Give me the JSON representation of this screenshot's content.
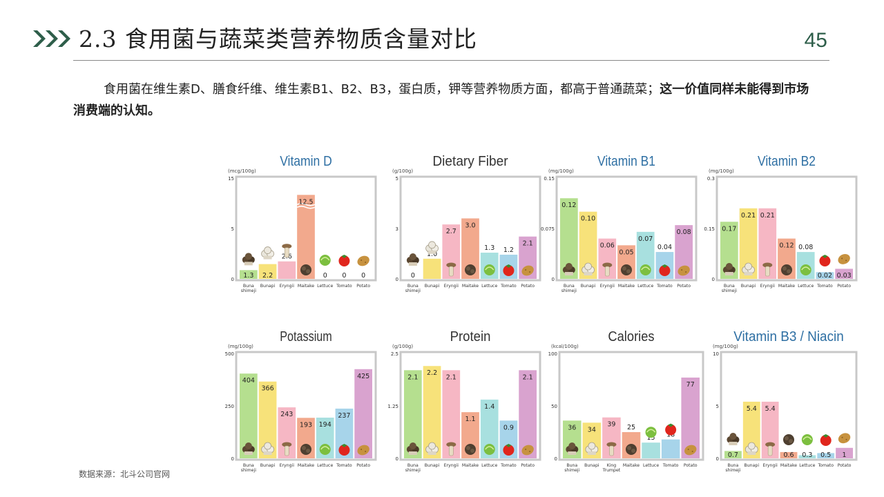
{
  "header": {
    "title": "2.3 食用菌与蔬菜类营养物质含量对比",
    "page_number": "45",
    "accent_color": "#2e5e4a"
  },
  "body": {
    "text_normal": "食用菌在维生素D、膳食纤维、维生素B1、B2、B3，蛋白质，钾等营养物质方面，都高于普通蔬菜；",
    "text_bold": "这一价值同样未能得到市场消费端的认知。"
  },
  "footer": {
    "source": "数据来源：北斗公司官网"
  },
  "colors": {
    "bars": [
      "#b5df8f",
      "#f7e27a",
      "#f6b7c4",
      "#f2a98d",
      "#a8e0df",
      "#a7d4ea",
      "#d9a3cf"
    ],
    "title_blue": "#2e6fa3",
    "title_dark": "#333333",
    "frame": "#c8c8c8"
  },
  "chart_data": [
    {
      "type": "bar",
      "title": "Vitamin D",
      "unit": "(mcg/100g)",
      "title_color": "blue",
      "yticks": [
        "15",
        "5",
        "0"
      ],
      "ylim": [
        0,
        15
      ],
      "categories": [
        "Buna shimeji",
        "Bunapi",
        "Eryngii",
        "Maitake",
        "Lettuce",
        "Tomato",
        "Potato"
      ],
      "values": [
        1.3,
        2.2,
        2.6,
        12.5,
        0,
        0,
        0
      ],
      "labels": [
        "1.3",
        "2.2",
        "2.6",
        "12.5",
        "0",
        "0",
        "0"
      ],
      "broken_bar_index": 3
    },
    {
      "type": "bar",
      "title": "Dietary Fiber",
      "unit": "(g/100g)",
      "title_color": "dark",
      "yticks": [
        "5",
        "3",
        "0"
      ],
      "ylim": [
        0,
        5
      ],
      "categories": [
        "Buna shimeji",
        "Bunapi",
        "Eryngii",
        "Maitake",
        "Lettuce",
        "Tomato",
        "Potato"
      ],
      "values": [
        0,
        1.0,
        2.7,
        3.0,
        1.3,
        1.2,
        2.1
      ],
      "labels": [
        "0",
        "1.0",
        "2.7",
        "3.0",
        "1.3",
        "1.2",
        "2.1"
      ]
    },
    {
      "type": "bar",
      "title": "Vitamin B1",
      "unit": "(mg/100g)",
      "title_color": "blue",
      "yticks": [
        "0.15",
        "0.075",
        "0"
      ],
      "ylim": [
        0,
        0.15
      ],
      "categories": [
        "Buna shimeji",
        "Bunapi",
        "Eryngii",
        "Maitake",
        "Lettuce",
        "Tomato",
        "Potato"
      ],
      "values": [
        0.12,
        0.1,
        0.06,
        0.05,
        0.07,
        0.04,
        0.08
      ],
      "labels": [
        "0.12",
        "0.10",
        "0.06",
        "0.05",
        "0.07",
        "0.04",
        "0.08"
      ]
    },
    {
      "type": "bar",
      "title": "Vitamin B2",
      "unit": "(mg/100g)",
      "title_color": "blue",
      "yticks": [
        "0.3",
        "0.15",
        "0"
      ],
      "ylim": [
        0,
        0.3
      ],
      "categories": [
        "Buna shimeji",
        "Bunapi",
        "Eryngii",
        "Maitake",
        "Lettuce",
        "Tomato",
        "Potato"
      ],
      "values": [
        0.17,
        0.21,
        0.21,
        0.12,
        0.08,
        0.02,
        0.03
      ],
      "labels": [
        "0.17",
        "0.21",
        "0.21",
        "0.12",
        "0.08",
        "0.02",
        "0.03"
      ]
    },
    {
      "type": "bar",
      "title": "Potassium",
      "unit": "(mg/100g)",
      "title_color": "dark",
      "yticks": [
        "500",
        "250",
        "0"
      ],
      "ylim": [
        0,
        500
      ],
      "categories": [
        "Buna shimeji",
        "Bunapi",
        "Eryngii",
        "Maitake",
        "Lettuce",
        "Tomato",
        "Potato"
      ],
      "values": [
        404,
        366,
        243,
        193,
        194,
        237,
        425
      ],
      "labels": [
        "404",
        "366",
        "243",
        "193",
        "194",
        "237",
        "425"
      ]
    },
    {
      "type": "bar",
      "title": "Protein",
      "unit": "(g/100g)",
      "title_color": "dark",
      "yticks": [
        "2.5",
        "1.25",
        "0"
      ],
      "ylim": [
        0,
        2.5
      ],
      "categories": [
        "Buna shimeji",
        "Bunapi",
        "Eryngii",
        "Maitake",
        "Lettuce",
        "Tomato",
        "Potato"
      ],
      "values": [
        2.1,
        2.2,
        2.1,
        1.1,
        1.4,
        0.9,
        2.1
      ],
      "labels": [
        "2.1",
        "2.2",
        "2.1",
        "1.1",
        "1.4",
        "0.9",
        "2.1"
      ]
    },
    {
      "type": "bar",
      "title": "Calories",
      "unit": "(kcal/100g)",
      "title_color": "dark",
      "yticks": [
        "100",
        "50",
        "0"
      ],
      "ylim": [
        0,
        100
      ],
      "categories": [
        "Buna shimeji",
        "Bunapi",
        "King Trumpet",
        "Maitake",
        "Lettuce",
        "Tomato",
        "Potato"
      ],
      "values": [
        36,
        34,
        39,
        25,
        15,
        18,
        77
      ],
      "labels": [
        "36",
        "34",
        "39",
        "25",
        "15",
        "18",
        "77"
      ]
    },
    {
      "type": "bar",
      "title": "Vitamin B3 / Niacin",
      "unit": "(mg/100g)",
      "title_color": "blue",
      "yticks": [
        "10",
        "5",
        "0"
      ],
      "ylim": [
        0,
        10
      ],
      "categories": [
        "Buna shimeji",
        "Bunapi",
        "Eryngii",
        "Maitake",
        "Lettuce",
        "Tomato",
        "Potato"
      ],
      "values": [
        0.7,
        5.4,
        5.4,
        0.6,
        0.3,
        0.5,
        1
      ],
      "labels": [
        "0.7",
        "5.4",
        "5.4",
        "0.6",
        "0.3",
        "0.5",
        "1"
      ]
    }
  ]
}
